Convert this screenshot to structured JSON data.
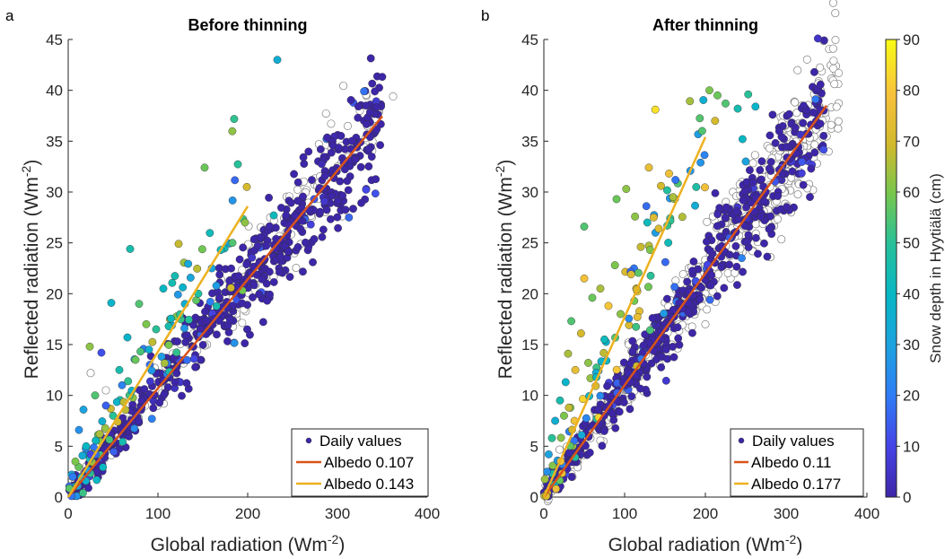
{
  "figure": {
    "colorbar": {
      "label": "Snow depth in Hyytiälä (cm)",
      "min": 0,
      "max": 90,
      "ticks": [
        0,
        10,
        20,
        30,
        40,
        50,
        60,
        70,
        80,
        90
      ],
      "colormap": "parula"
    },
    "colors": {
      "daily_marker": "#3e26a8",
      "albedo_low_line": "#d95319",
      "albedo_high_line": "#edb120",
      "open_marker_edge": "#7f7f7f",
      "axes": "#262626"
    }
  },
  "chart_data": [
    {
      "type": "scatter",
      "panel_letter": "a",
      "title": "Before thinning",
      "xlabel": "Global radiation (Wm",
      "xlabel_sup": "-2",
      "xlabel_end": ")",
      "ylabel": "Reflected radiation (Wm",
      "ylabel_sup": "-2",
      "ylabel_end": ")",
      "xlim": [
        0,
        400
      ],
      "ylim": [
        0,
        45
      ],
      "xticks": [
        0,
        100,
        200,
        300,
        400
      ],
      "yticks": [
        0,
        5,
        10,
        15,
        20,
        25,
        30,
        35,
        40,
        45
      ],
      "grid": false,
      "legend_position": "bottom-right",
      "legend": [
        {
          "marker": "dot",
          "label": "Daily values"
        },
        {
          "marker": "line-red",
          "label": "Albedo 0.107"
        },
        {
          "marker": "line-yellow",
          "label": "Albedo 0.143"
        }
      ],
      "fit_lines": [
        {
          "name": "Albedo 0.107",
          "slope": 0.107,
          "x": [
            0,
            350
          ]
        },
        {
          "name": "Albedo 0.143",
          "slope": 0.143,
          "x": [
            0,
            200
          ]
        }
      ],
      "snow_points_sample": [
        {
          "x": 233,
          "y": 43.0,
          "snow": 35
        },
        {
          "x": 152,
          "y": 32.4,
          "snow": 58
        },
        {
          "x": 199,
          "y": 30.5,
          "snow": 70
        },
        {
          "x": 197,
          "y": 27.0,
          "snow": 62
        },
        {
          "x": 69,
          "y": 24.4,
          "snow": 45
        },
        {
          "x": 123,
          "y": 24.9,
          "snow": 68
        },
        {
          "x": 229,
          "y": 27.7,
          "snow": 42
        },
        {
          "x": 183,
          "y": 25.0,
          "snow": 55
        },
        {
          "x": 48,
          "y": 19.1,
          "snow": 38
        },
        {
          "x": 79,
          "y": 19.0,
          "snow": 55
        },
        {
          "x": 106,
          "y": 20.5,
          "snow": 40
        },
        {
          "x": 87,
          "y": 17.0,
          "snow": 60
        },
        {
          "x": 98,
          "y": 16.5,
          "snow": 50
        },
        {
          "x": 24,
          "y": 14.8,
          "snow": 62
        },
        {
          "x": 37,
          "y": 14.2,
          "snow": 12
        },
        {
          "x": 57,
          "y": 12.5,
          "snow": 45
        },
        {
          "x": 66,
          "y": 15.7,
          "snow": 38
        },
        {
          "x": 130,
          "y": 19.0,
          "snow": 35
        },
        {
          "x": 145,
          "y": 20.0,
          "snow": 48
        },
        {
          "x": 160,
          "y": 22.5,
          "snow": 30
        },
        {
          "x": 170,
          "y": 24.3,
          "snow": 42
        },
        {
          "x": 30,
          "y": 10.0,
          "snow": 55
        },
        {
          "x": 17,
          "y": 8.6,
          "snow": 30
        },
        {
          "x": 12,
          "y": 6.6,
          "snow": 25
        },
        {
          "x": 20,
          "y": 5.0,
          "snow": 40
        },
        {
          "x": 8,
          "y": 3.5,
          "snow": 60
        },
        {
          "x": 5,
          "y": 2.0,
          "snow": 20
        },
        {
          "x": 42,
          "y": 9.0,
          "snow": 15
        },
        {
          "x": 50,
          "y": 8.0,
          "snow": 50
        },
        {
          "x": 60,
          "y": 11.0,
          "snow": 22
        },
        {
          "x": 75,
          "y": 13.5,
          "snow": 58
        },
        {
          "x": 90,
          "y": 14.5,
          "snow": 35
        },
        {
          "x": 112,
          "y": 16.8,
          "snow": 45
        },
        {
          "x": 35,
          "y": 6.2,
          "snow": 65
        },
        {
          "x": 25,
          "y": 4.2,
          "snow": 10
        }
      ],
      "open_points_sample": [
        {
          "x": 362,
          "y": 39.4
        },
        {
          "x": 325,
          "y": 38.0
        },
        {
          "x": 333,
          "y": 36.5
        },
        {
          "x": 198,
          "y": 20.6
        },
        {
          "x": 176,
          "y": 19.0
        },
        {
          "x": 25,
          "y": 12.2
        },
        {
          "x": 42,
          "y": 10.5
        },
        {
          "x": 120,
          "y": 13.5
        },
        {
          "x": 300,
          "y": 32.5
        },
        {
          "x": 342,
          "y": 37.2
        }
      ]
    },
    {
      "type": "scatter",
      "panel_letter": "b",
      "title": "After thinning",
      "xlabel": "Global radiation (Wm",
      "xlabel_sup": "-2",
      "xlabel_end": ")",
      "ylabel": "Reflected radiation (Wm",
      "ylabel_sup": "-2",
      "ylabel_end": ")",
      "xlim": [
        0,
        400
      ],
      "ylim": [
        0,
        45
      ],
      "xticks": [
        0,
        100,
        200,
        300,
        400
      ],
      "yticks": [
        0,
        5,
        10,
        15,
        20,
        25,
        30,
        35,
        40,
        45
      ],
      "grid": false,
      "legend_position": "bottom-right",
      "legend": [
        {
          "marker": "dot",
          "label": "Daily values"
        },
        {
          "marker": "line-red",
          "label": "Albedo 0.11"
        },
        {
          "marker": "line-yellow",
          "label": "Albedo 0.177"
        }
      ],
      "fit_lines": [
        {
          "name": "Albedo 0.11",
          "slope": 0.11,
          "x": [
            0,
            350
          ]
        },
        {
          "name": "Albedo 0.177",
          "slope": 0.177,
          "x": [
            0,
            200
          ]
        }
      ],
      "snow_points_sample": [
        {
          "x": 138,
          "y": 38.1,
          "snow": 85
        },
        {
          "x": 205,
          "y": 40.0,
          "snow": 60
        },
        {
          "x": 215,
          "y": 39.5,
          "snow": 58
        },
        {
          "x": 225,
          "y": 38.7,
          "snow": 55
        },
        {
          "x": 240,
          "y": 38.2,
          "snow": 45
        },
        {
          "x": 253,
          "y": 39.6,
          "snow": 50
        },
        {
          "x": 262,
          "y": 38.4,
          "snow": 38
        },
        {
          "x": 212,
          "y": 37.0,
          "snow": 70
        },
        {
          "x": 196,
          "y": 36.0,
          "snow": 55
        },
        {
          "x": 246,
          "y": 35.2,
          "snow": 40
        },
        {
          "x": 250,
          "y": 33.0,
          "snow": 30
        },
        {
          "x": 130,
          "y": 32.4,
          "snow": 75
        },
        {
          "x": 145,
          "y": 30.6,
          "snow": 70
        },
        {
          "x": 102,
          "y": 30.3,
          "snow": 62
        },
        {
          "x": 90,
          "y": 29.3,
          "snow": 58
        },
        {
          "x": 160,
          "y": 29.5,
          "snow": 65
        },
        {
          "x": 136,
          "y": 27.5,
          "snow": 72
        },
        {
          "x": 50,
          "y": 26.6,
          "snow": 55
        },
        {
          "x": 120,
          "y": 24.6,
          "snow": 68
        },
        {
          "x": 88,
          "y": 22.8,
          "snow": 60
        },
        {
          "x": 50,
          "y": 21.5,
          "snow": 78
        },
        {
          "x": 108,
          "y": 21.9,
          "snow": 72
        },
        {
          "x": 70,
          "y": 20.5,
          "snow": 65
        },
        {
          "x": 80,
          "y": 18.8,
          "snow": 80
        },
        {
          "x": 60,
          "y": 19.6,
          "snow": 58
        },
        {
          "x": 34,
          "y": 17.3,
          "snow": 55
        },
        {
          "x": 46,
          "y": 16.1,
          "snow": 70
        },
        {
          "x": 95,
          "y": 18.0,
          "snow": 62
        },
        {
          "x": 30,
          "y": 14.1,
          "snow": 65
        },
        {
          "x": 39,
          "y": 12.5,
          "snow": 75
        },
        {
          "x": 27,
          "y": 11.3,
          "snow": 38
        },
        {
          "x": 20,
          "y": 9.5,
          "snow": 45
        },
        {
          "x": 25,
          "y": 8.0,
          "snow": 60
        },
        {
          "x": 14,
          "y": 7.5,
          "snow": 35
        },
        {
          "x": 10,
          "y": 5.8,
          "snow": 50
        },
        {
          "x": 6,
          "y": 4.2,
          "snow": 30
        },
        {
          "x": 4,
          "y": 2.5,
          "snow": 25
        },
        {
          "x": 31,
          "y": 8.8,
          "snow": 68
        },
        {
          "x": 55,
          "y": 13.2,
          "snow": 62
        },
        {
          "x": 75,
          "y": 15.5,
          "snow": 42
        },
        {
          "x": 115,
          "y": 20.4,
          "snow": 70
        },
        {
          "x": 245,
          "y": 23.5,
          "snow": 22
        },
        {
          "x": 230,
          "y": 25.5,
          "snow": 15
        }
      ],
      "open_points_sample": [
        {
          "x": 365,
          "y": 41.7
        },
        {
          "x": 340,
          "y": 38.5
        },
        {
          "x": 320,
          "y": 36.8
        },
        {
          "x": 300,
          "y": 33.0
        },
        {
          "x": 280,
          "y": 30.5
        },
        {
          "x": 260,
          "y": 28.5
        },
        {
          "x": 240,
          "y": 27.0
        },
        {
          "x": 220,
          "y": 25.0
        },
        {
          "x": 200,
          "y": 22.5
        },
        {
          "x": 180,
          "y": 20.5
        },
        {
          "x": 160,
          "y": 18.0
        },
        {
          "x": 140,
          "y": 15.5
        },
        {
          "x": 120,
          "y": 13.5
        },
        {
          "x": 100,
          "y": 11.5
        },
        {
          "x": 80,
          "y": 9.2
        },
        {
          "x": 60,
          "y": 7.0
        },
        {
          "x": 40,
          "y": 5.0
        }
      ]
    }
  ]
}
